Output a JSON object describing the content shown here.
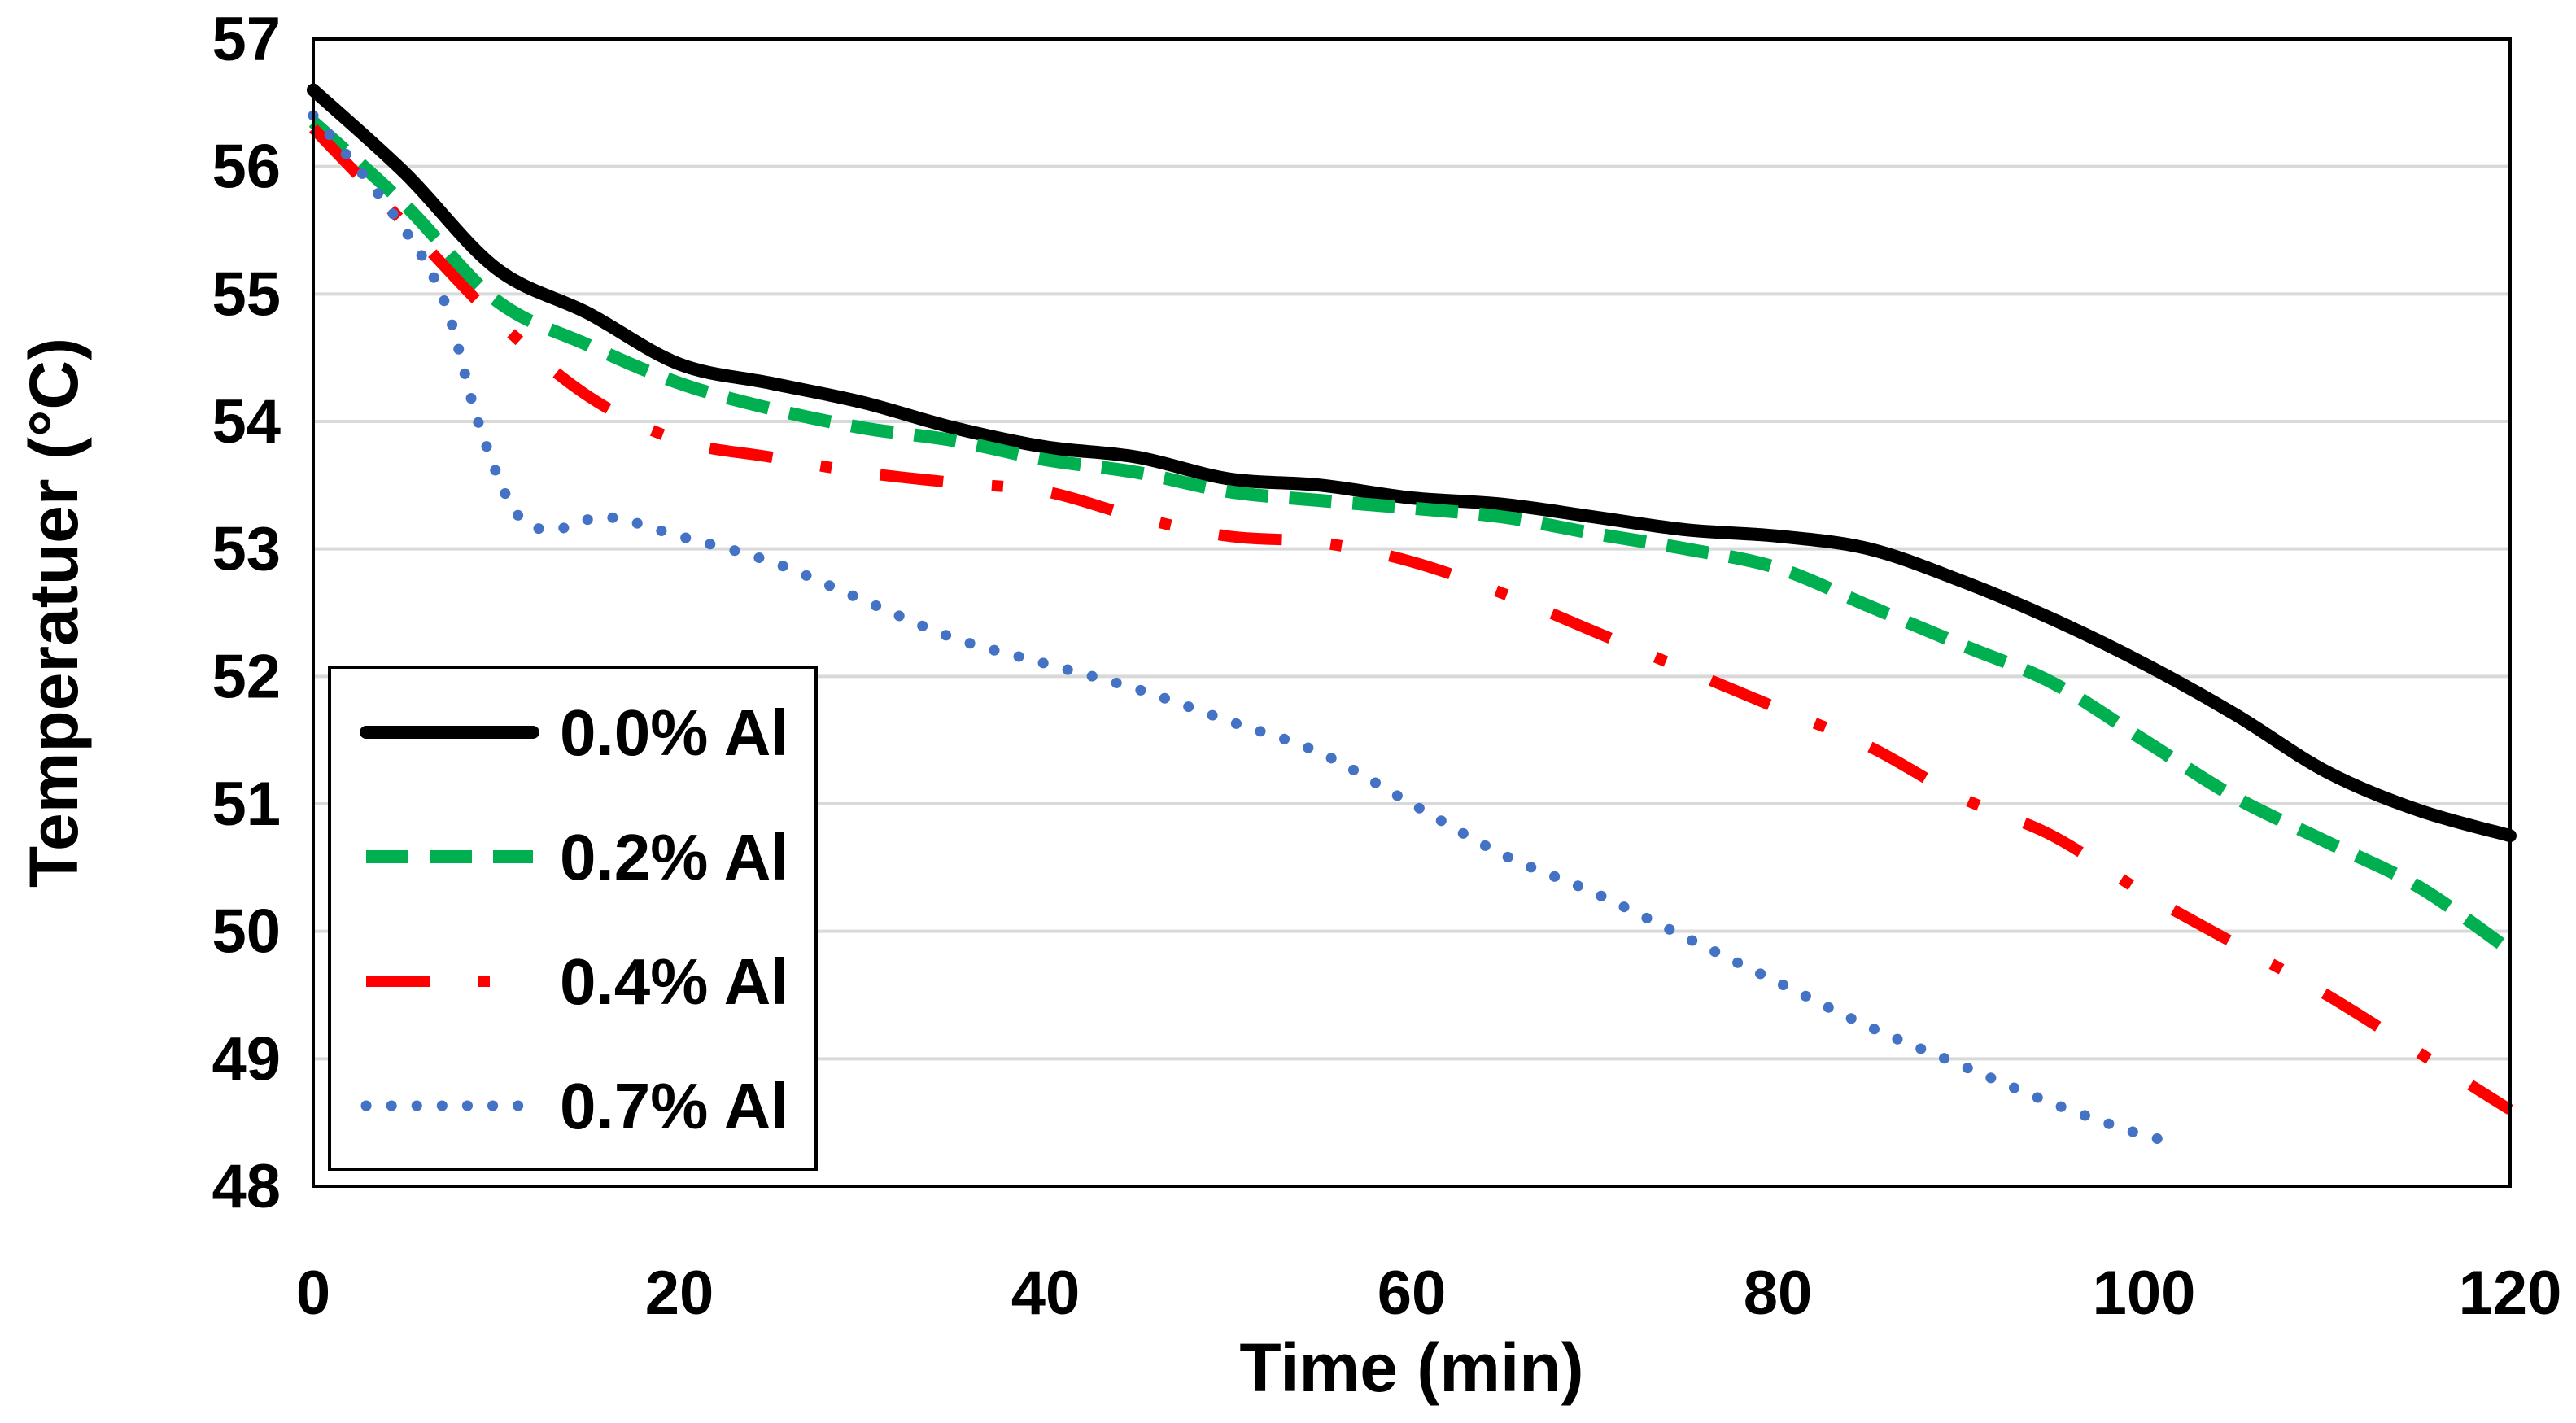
{
  "chart_data": {
    "type": "line",
    "title": "",
    "xlabel": "Time (min)",
    "ylabel": "Temperatuer (°C)",
    "xlim": [
      0,
      120
    ],
    "ylim": [
      48,
      57
    ],
    "xticks": [
      "0",
      "20",
      "40",
      "60",
      "80",
      "100",
      "120"
    ],
    "yticks": [
      "48",
      "49",
      "50",
      "51",
      "52",
      "53",
      "54",
      "55",
      "56",
      "57"
    ],
    "grid": "horizontal",
    "legend_position": "bottom-left",
    "series": [
      {
        "name": "0.0% Al",
        "color": "#000000",
        "style": "solid",
        "x": [
          0,
          5,
          10,
          15,
          20,
          25,
          30,
          35,
          40,
          45,
          50,
          55,
          60,
          65,
          70,
          75,
          80,
          85,
          90,
          95,
          100,
          105,
          110,
          115,
          120
        ],
        "y": [
          56.6,
          55.95,
          55.2,
          54.85,
          54.45,
          54.3,
          54.15,
          53.95,
          53.8,
          53.72,
          53.55,
          53.5,
          53.4,
          53.35,
          53.25,
          53.15,
          53.1,
          53.0,
          52.75,
          52.45,
          52.1,
          51.7,
          51.25,
          50.95,
          50.75
        ]
      },
      {
        "name": "0.2% Al",
        "color": "#00B050",
        "style": "dashed",
        "x": [
          0,
          5,
          10,
          15,
          20,
          25,
          30,
          35,
          40,
          45,
          50,
          55,
          60,
          65,
          70,
          75,
          80,
          85,
          90,
          95,
          100,
          105,
          110,
          115,
          120
        ],
        "y": [
          56.35,
          55.7,
          54.95,
          54.6,
          54.3,
          54.1,
          53.95,
          53.85,
          53.7,
          53.6,
          53.45,
          53.38,
          53.32,
          53.25,
          53.12,
          53.0,
          52.85,
          52.55,
          52.25,
          51.95,
          51.5,
          51.05,
          50.7,
          50.35,
          49.85
        ]
      },
      {
        "name": "0.4% Al",
        "color": "#FF0000",
        "style": "dash-dot",
        "x": [
          0,
          5,
          10,
          15,
          20,
          25,
          30,
          35,
          40,
          45,
          50,
          55,
          60,
          65,
          70,
          75,
          80,
          85,
          90,
          95,
          100,
          105,
          110,
          115,
          120
        ],
        "y": [
          56.3,
          55.55,
          54.8,
          54.2,
          53.85,
          53.72,
          53.6,
          53.52,
          53.45,
          53.25,
          53.1,
          53.05,
          52.9,
          52.65,
          52.35,
          52.05,
          51.75,
          51.45,
          51.05,
          50.75,
          50.3,
          49.9,
          49.5,
          49.05,
          48.6
        ]
      },
      {
        "name": "0.7% Al",
        "color": "#4472C4",
        "style": "dotted",
        "x": [
          0,
          4,
          7,
          9,
          11,
          13,
          16,
          20,
          25,
          30,
          35,
          40,
          45,
          50,
          55,
          60,
          65,
          70,
          75,
          80,
          85,
          90,
          95,
          100,
          102
        ],
        "y": [
          56.4,
          55.7,
          55.0,
          54.0,
          53.3,
          53.15,
          53.25,
          53.1,
          52.9,
          52.6,
          52.3,
          52.1,
          51.9,
          51.65,
          51.4,
          51.0,
          50.6,
          50.3,
          49.95,
          49.6,
          49.25,
          48.95,
          48.65,
          48.4,
          48.35
        ]
      }
    ]
  }
}
